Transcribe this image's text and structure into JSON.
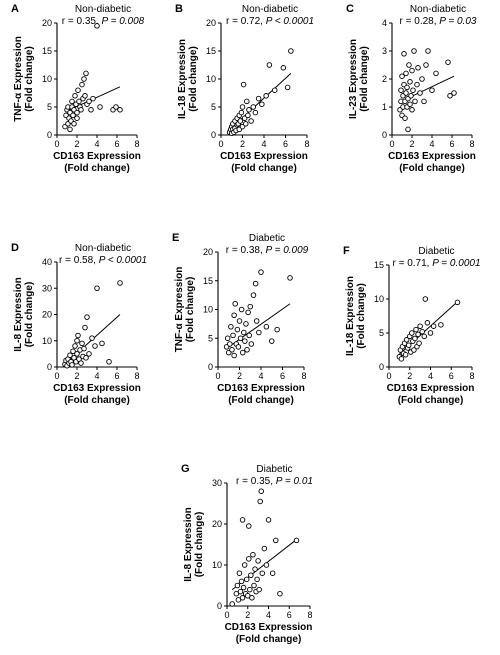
{
  "figure": {
    "panels": [
      {
        "letter": "A",
        "group": "Non-diabetic",
        "stat_r": "r = 0.35, ",
        "stat_p": "P = 0.008",
        "ylabel1": "TNF-α Expression",
        "ylabel2": "(Fold change)",
        "xlabel1": "CD163 Expression",
        "xlabel2": "(Fold change)",
        "xticks": [
          "0",
          "2",
          "4",
          "6",
          "8"
        ],
        "yticks": [
          "0",
          "5",
          "10",
          "15",
          "20"
        ]
      },
      {
        "letter": "B",
        "group": "Non-diabetic",
        "stat_r": "r = 0.72, ",
        "stat_p": "P < 0.0001",
        "ylabel1": "IL-18 Expression",
        "ylabel2": "(Fold change)",
        "xlabel1": "CD163 Expression",
        "xlabel2": "(Fold change)",
        "xticks": [
          "0",
          "2",
          "4",
          "6",
          "8"
        ],
        "yticks": [
          "0",
          "5",
          "10",
          "15",
          "20"
        ]
      },
      {
        "letter": "C",
        "group": "Non-diabetic",
        "stat_r": "r = 0.28, ",
        "stat_p": "P = 0.03",
        "ylabel1": "IL-23 Expression",
        "ylabel2": "(Fold change)",
        "xlabel1": "CD163 Expression",
        "xlabel2": "(Fold change)",
        "xticks": [
          "0",
          "2",
          "4",
          "6",
          "8"
        ],
        "yticks": [
          "0",
          "1",
          "2",
          "3",
          "4"
        ]
      },
      {
        "letter": "D",
        "group": "Non-diabetic",
        "stat_r": "r = 0.58, ",
        "stat_p": "P < 0.0001",
        "ylabel1": "IL-8 Expression",
        "ylabel2": "(Fold change)",
        "xlabel1": "CD163 Expression",
        "xlabel2": "(Fold change)",
        "xticks": [
          "0",
          "2",
          "4",
          "6",
          "8"
        ],
        "yticks": [
          "0",
          "10",
          "20",
          "30",
          "40"
        ]
      },
      {
        "letter": "E",
        "group": "Diabetic",
        "stat_r": "r = 0.38, ",
        "stat_p": "P = 0.009",
        "ylabel1": "TNF-α Expression",
        "ylabel2": "(Fold change)",
        "xlabel1": "CD163 Expression",
        "xlabel2": "(Fold change)",
        "xticks": [
          "0",
          "2",
          "4",
          "6",
          "8"
        ],
        "yticks": [
          "0",
          "5",
          "10",
          "15",
          "20"
        ]
      },
      {
        "letter": "F",
        "group": "Diabetic",
        "stat_r": "r = 0.71, ",
        "stat_p": "P = 0.0001",
        "ylabel1": "IL-18 Expression",
        "ylabel2": "(Fold change)",
        "xlabel1": "CD163 Expression",
        "xlabel2": "(Fold change)",
        "xticks": [
          "0",
          "2",
          "4",
          "6",
          "8"
        ],
        "yticks": [
          "0",
          "5",
          "10",
          "15"
        ]
      },
      {
        "letter": "G",
        "group": "Diabetic",
        "stat_r": "r = 0.35, ",
        "stat_p": "P = 0.01",
        "ylabel1": "IL-8 Expression",
        "ylabel2": "(Fold change)",
        "xlabel1": "CD163 Expression",
        "xlabel2": "(Fold change)",
        "xticks": [
          "0",
          "2",
          "4",
          "6",
          "8"
        ],
        "yticks": [
          "0",
          "10",
          "20",
          "30"
        ]
      }
    ]
  },
  "chart_data": [
    {
      "type": "scatter",
      "panel": "A",
      "title": "Non-diabetic",
      "xlabel": "CD163 Expression (Fold change)",
      "ylabel": "TNF-α Expression (Fold change)",
      "xlim": [
        0,
        8
      ],
      "ylim": [
        0,
        20
      ],
      "grid": false,
      "annotation": "r = 0.35, P = 0.008",
      "points": [
        [
          0.8,
          1.5
        ],
        [
          0.9,
          3.5
        ],
        [
          1.0,
          4.5
        ],
        [
          1.1,
          2.0
        ],
        [
          1.1,
          5.0
        ],
        [
          1.2,
          3.0
        ],
        [
          1.3,
          1.0
        ],
        [
          1.3,
          4.0
        ],
        [
          1.4,
          2.5
        ],
        [
          1.5,
          5.0
        ],
        [
          1.5,
          6.0
        ],
        [
          1.6,
          3.5
        ],
        [
          1.7,
          4.5
        ],
        [
          1.7,
          2.0
        ],
        [
          1.8,
          7.0
        ],
        [
          1.9,
          5.5
        ],
        [
          2.0,
          4.0
        ],
        [
          2.0,
          3.0
        ],
        [
          2.1,
          8.0
        ],
        [
          2.2,
          6.0
        ],
        [
          2.3,
          5.0
        ],
        [
          2.4,
          4.5
        ],
        [
          2.5,
          9.0
        ],
        [
          2.6,
          6.5
        ],
        [
          2.7,
          10.0
        ],
        [
          2.8,
          7.0
        ],
        [
          2.9,
          11.0
        ],
        [
          3.0,
          5.5
        ],
        [
          3.2,
          6.0
        ],
        [
          3.4,
          4.5
        ],
        [
          3.6,
          6.5
        ],
        [
          4.0,
          19.5
        ],
        [
          4.3,
          5.0
        ],
        [
          5.6,
          4.5
        ],
        [
          5.9,
          5.0
        ],
        [
          6.3,
          4.5
        ]
      ],
      "trend": [
        [
          1.0,
          4.3
        ],
        [
          6.3,
          8.6
        ]
      ]
    },
    {
      "type": "scatter",
      "panel": "B",
      "title": "Non-diabetic",
      "xlabel": "CD163 Expression (Fold change)",
      "ylabel": "IL-18 Expression (Fold change)",
      "xlim": [
        0,
        8
      ],
      "ylim": [
        0,
        20
      ],
      "grid": false,
      "annotation": "r = 0.72, P < 0.0001",
      "points": [
        [
          0.8,
          0.5
        ],
        [
          0.9,
          1.0
        ],
        [
          1.0,
          1.5
        ],
        [
          1.0,
          0.3
        ],
        [
          1.1,
          2.0
        ],
        [
          1.1,
          1.0
        ],
        [
          1.2,
          0.5
        ],
        [
          1.3,
          2.5
        ],
        [
          1.3,
          1.2
        ],
        [
          1.4,
          0.8
        ],
        [
          1.5,
          1.8
        ],
        [
          1.5,
          3.0
        ],
        [
          1.6,
          2.0
        ],
        [
          1.7,
          1.0
        ],
        [
          1.7,
          3.5
        ],
        [
          1.8,
          2.5
        ],
        [
          1.9,
          4.0
        ],
        [
          2.0,
          5.0
        ],
        [
          2.0,
          1.5
        ],
        [
          2.1,
          9.0
        ],
        [
          2.2,
          3.0
        ],
        [
          2.3,
          2.0
        ],
        [
          2.4,
          6.0
        ],
        [
          2.5,
          3.5
        ],
        [
          2.6,
          4.5
        ],
        [
          2.8,
          2.5
        ],
        [
          3.0,
          5.0
        ],
        [
          3.2,
          4.0
        ],
        [
          3.5,
          6.5
        ],
        [
          3.8,
          5.5
        ],
        [
          4.2,
          7.0
        ],
        [
          4.5,
          12.5
        ],
        [
          5.0,
          8.0
        ],
        [
          5.8,
          12.0
        ],
        [
          6.2,
          8.5
        ],
        [
          6.5,
          15.0
        ]
      ],
      "trend": [
        [
          1.0,
          1.3
        ],
        [
          6.5,
          11.0
        ]
      ]
    },
    {
      "type": "scatter",
      "panel": "C",
      "title": "Non-diabetic",
      "xlabel": "CD163 Expression (Fold change)",
      "ylabel": "IL-23 Expression (Fold change)",
      "xlim": [
        0,
        8
      ],
      "ylim": [
        0,
        4
      ],
      "grid": false,
      "annotation": "r = 0.28, P = 0.03",
      "points": [
        [
          0.8,
          0.9
        ],
        [
          0.9,
          1.2
        ],
        [
          0.9,
          1.6
        ],
        [
          1.0,
          0.7
        ],
        [
          1.0,
          2.1
        ],
        [
          1.1,
          1.0
        ],
        [
          1.1,
          1.4
        ],
        [
          1.2,
          1.8
        ],
        [
          1.2,
          2.9
        ],
        [
          1.3,
          0.6
        ],
        [
          1.3,
          1.2
        ],
        [
          1.4,
          1.5
        ],
        [
          1.4,
          2.2
        ],
        [
          1.5,
          1.0
        ],
        [
          1.5,
          1.7
        ],
        [
          1.6,
          0.2
        ],
        [
          1.6,
          1.3
        ],
        [
          1.7,
          2.5
        ],
        [
          1.8,
          1.1
        ],
        [
          1.8,
          1.9
        ],
        [
          1.9,
          1.4
        ],
        [
          2.0,
          0.9
        ],
        [
          2.0,
          2.3
        ],
        [
          2.1,
          1.6
        ],
        [
          2.2,
          3.0
        ],
        [
          2.3,
          1.2
        ],
        [
          2.5,
          1.8
        ],
        [
          2.6,
          2.4
        ],
        [
          2.8,
          1.5
        ],
        [
          3.0,
          2.0
        ],
        [
          3.2,
          1.2
        ],
        [
          3.4,
          2.5
        ],
        [
          3.6,
          3.0
        ],
        [
          4.0,
          1.6
        ],
        [
          4.4,
          2.2
        ],
        [
          5.6,
          2.6
        ],
        [
          5.8,
          1.4
        ],
        [
          6.2,
          1.5
        ]
      ],
      "trend": [
        [
          0.9,
          1.2
        ],
        [
          6.2,
          2.1
        ]
      ]
    },
    {
      "type": "scatter",
      "panel": "D",
      "title": "Non-diabetic",
      "xlabel": "CD163 Expression (Fold change)",
      "ylabel": "IL-8 Expression (Fold change)",
      "xlim": [
        0,
        8
      ],
      "ylim": [
        0,
        40
      ],
      "grid": false,
      "annotation": "r = 0.58, P < 0.0001",
      "points": [
        [
          0.8,
          1.0
        ],
        [
          0.9,
          2.5
        ],
        [
          1.0,
          0.5
        ],
        [
          1.1,
          3.0
        ],
        [
          1.2,
          1.5
        ],
        [
          1.3,
          4.5
        ],
        [
          1.4,
          2.0
        ],
        [
          1.5,
          0.8
        ],
        [
          1.6,
          6.0
        ],
        [
          1.7,
          3.5
        ],
        [
          1.8,
          8.0
        ],
        [
          1.9,
          2.0
        ],
        [
          2.0,
          5.0
        ],
        [
          2.0,
          10.0
        ],
        [
          2.1,
          12.0
        ],
        [
          2.2,
          3.0
        ],
        [
          2.3,
          6.5
        ],
        [
          2.4,
          1.5
        ],
        [
          2.5,
          9.0
        ],
        [
          2.6,
          4.0
        ],
        [
          2.7,
          7.0
        ],
        [
          2.8,
          15.0
        ],
        [
          2.9,
          3.5
        ],
        [
          3.0,
          19.0
        ],
        [
          3.2,
          5.0
        ],
        [
          3.5,
          11.0
        ],
        [
          3.8,
          8.0
        ],
        [
          4.0,
          30.0
        ],
        [
          4.5,
          9.0
        ],
        [
          5.2,
          2.0
        ],
        [
          6.3,
          32.0
        ]
      ],
      "trend": [
        [
          1.0,
          1.8
        ],
        [
          6.3,
          20.0
        ]
      ]
    },
    {
      "type": "scatter",
      "panel": "E",
      "title": "Diabetic",
      "xlabel": "CD163 Expression (Fold change)",
      "ylabel": "TNF-α Expression (Fold change)",
      "xlim": [
        0,
        8
      ],
      "ylim": [
        0,
        20
      ],
      "grid": false,
      "annotation": "r = 0.38, P = 0.009",
      "points": [
        [
          0.8,
          3.5
        ],
        [
          0.9,
          5.0
        ],
        [
          1.0,
          2.5
        ],
        [
          1.1,
          4.0
        ],
        [
          1.2,
          7.0
        ],
        [
          1.3,
          3.0
        ],
        [
          1.4,
          5.5
        ],
        [
          1.5,
          2.0
        ],
        [
          1.5,
          9.0
        ],
        [
          1.6,
          11.0
        ],
        [
          1.7,
          4.0
        ],
        [
          1.8,
          6.5
        ],
        [
          1.9,
          3.5
        ],
        [
          2.0,
          8.0
        ],
        [
          2.1,
          5.0
        ],
        [
          2.2,
          10.0
        ],
        [
          2.3,
          2.5
        ],
        [
          2.4,
          6.0
        ],
        [
          2.5,
          4.5
        ],
        [
          2.6,
          7.5
        ],
        [
          2.7,
          3.0
        ],
        [
          2.8,
          9.5
        ],
        [
          2.9,
          5.5
        ],
        [
          3.0,
          10.5
        ],
        [
          3.1,
          4.0
        ],
        [
          3.3,
          12.5
        ],
        [
          3.5,
          14.5
        ],
        [
          3.6,
          8.0
        ],
        [
          3.8,
          6.0
        ],
        [
          4.0,
          16.5
        ],
        [
          4.5,
          7.0
        ],
        [
          5.0,
          4.5
        ],
        [
          5.5,
          6.5
        ],
        [
          6.7,
          15.5
        ]
      ],
      "trend": [
        [
          1.0,
          3.5
        ],
        [
          6.7,
          11.0
        ]
      ]
    },
    {
      "type": "scatter",
      "panel": "F",
      "title": "Diabetic",
      "xlabel": "CD163 Expression (Fold change)",
      "ylabel": "IL-18 Expression (Fold change)",
      "xlim": [
        0,
        8
      ],
      "ylim": [
        0,
        15
      ],
      "grid": false,
      "annotation": "r = 0.71, P = 0.0001",
      "points": [
        [
          1.0,
          1.5
        ],
        [
          1.1,
          2.5
        ],
        [
          1.2,
          1.2
        ],
        [
          1.3,
          3.0
        ],
        [
          1.4,
          2.0
        ],
        [
          1.5,
          3.5
        ],
        [
          1.6,
          1.8
        ],
        [
          1.7,
          4.0
        ],
        [
          1.8,
          2.8
        ],
        [
          1.9,
          3.2
        ],
        [
          2.0,
          4.5
        ],
        [
          2.1,
          2.2
        ],
        [
          2.2,
          5.0
        ],
        [
          2.3,
          3.8
        ],
        [
          2.4,
          2.5
        ],
        [
          2.5,
          4.2
        ],
        [
          2.6,
          5.5
        ],
        [
          2.7,
          3.0
        ],
        [
          2.8,
          4.8
        ],
        [
          2.9,
          3.5
        ],
        [
          3.0,
          6.0
        ],
        [
          3.2,
          5.2
        ],
        [
          3.4,
          4.5
        ],
        [
          3.5,
          10.0
        ],
        [
          3.7,
          6.5
        ],
        [
          4.0,
          5.0
        ],
        [
          4.3,
          6.0
        ],
        [
          5.0,
          6.2
        ],
        [
          6.6,
          9.5
        ]
      ],
      "trend": [
        [
          1.0,
          1.9
        ],
        [
          6.6,
          9.6
        ]
      ]
    },
    {
      "type": "scatter",
      "panel": "G",
      "title": "Diabetic",
      "xlabel": "CD163 Expression (Fold change)",
      "ylabel": "IL-8 Expression (Fold change)",
      "xlim": [
        0,
        8
      ],
      "ylim": [
        0,
        30
      ],
      "grid": false,
      "annotation": "r = 0.35, P = 0.01",
      "points": [
        [
          0.5,
          0.5
        ],
        [
          0.9,
          3.0
        ],
        [
          1.0,
          5.0
        ],
        [
          1.1,
          1.5
        ],
        [
          1.2,
          8.0
        ],
        [
          1.3,
          3.5
        ],
        [
          1.4,
          6.0
        ],
        [
          1.5,
          2.0
        ],
        [
          1.5,
          21.0
        ],
        [
          1.6,
          4.5
        ],
        [
          1.7,
          10.0
        ],
        [
          1.8,
          3.0
        ],
        [
          1.9,
          6.5
        ],
        [
          2.0,
          2.5
        ],
        [
          2.1,
          19.5
        ],
        [
          2.1,
          11.5
        ],
        [
          2.2,
          4.0
        ],
        [
          2.3,
          7.5
        ],
        [
          2.4,
          2.0
        ],
        [
          2.5,
          12.5
        ],
        [
          2.6,
          5.0
        ],
        [
          2.7,
          9.0
        ],
        [
          2.8,
          3.5
        ],
        [
          2.9,
          6.5
        ],
        [
          3.0,
          11.0
        ],
        [
          3.1,
          4.0
        ],
        [
          3.2,
          25.5
        ],
        [
          3.3,
          28.0
        ],
        [
          3.4,
          8.0
        ],
        [
          3.6,
          14.0
        ],
        [
          3.8,
          10.0
        ],
        [
          4.0,
          21.0
        ],
        [
          4.4,
          8.0
        ],
        [
          4.7,
          16.0
        ],
        [
          5.1,
          3.0
        ],
        [
          6.7,
          16.0
        ]
      ],
      "trend": [
        [
          0.5,
          4.0
        ],
        [
          6.7,
          16.2
        ]
      ]
    }
  ]
}
